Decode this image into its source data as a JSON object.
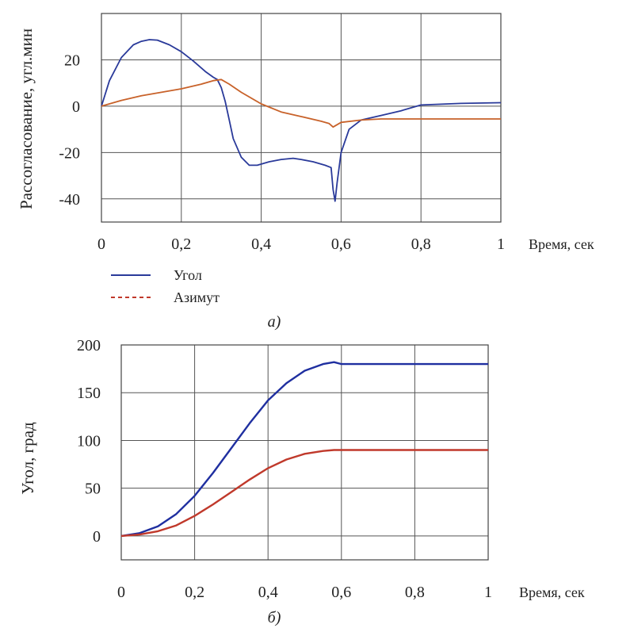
{
  "chart_data": [
    {
      "type": "line",
      "panel_caption": "а)",
      "ylabel": "Рассогласование, угл.мин",
      "xlabel": "Время, сек",
      "xlim": [
        0,
        1
      ],
      "ylim": [
        -50,
        40
      ],
      "x_ticks": [
        0,
        0.2,
        0.4,
        0.6,
        0.8,
        1
      ],
      "x_tick_labels": [
        "0",
        "0,2",
        "0,4",
        "0,6",
        "0,8",
        "1"
      ],
      "y_ticks": [
        -40,
        -20,
        0,
        20
      ],
      "y_tick_labels": [
        "-40",
        "-20",
        "0",
        "20"
      ],
      "y_grid": [
        -50,
        -40,
        -20,
        0,
        20,
        40
      ],
      "grid": true,
      "legend_position": "bottom-left",
      "series": [
        {
          "name": "Угол",
          "color": "#2a3a9a",
          "style": "solid",
          "x": [
            0,
            0.02,
            0.05,
            0.08,
            0.1,
            0.12,
            0.14,
            0.17,
            0.2,
            0.23,
            0.26,
            0.28,
            0.29,
            0.3,
            0.31,
            0.32,
            0.33,
            0.35,
            0.37,
            0.39,
            0.42,
            0.45,
            0.48,
            0.5,
            0.53,
            0.56,
            0.575,
            0.58,
            0.585,
            0.59,
            0.6,
            0.62,
            0.65,
            0.7,
            0.75,
            0.8,
            0.9,
            1
          ],
          "y": [
            0,
            11,
            21,
            26.5,
            28,
            28.7,
            28.5,
            26.5,
            23.5,
            19.5,
            15,
            12.5,
            11.5,
            8,
            2,
            -6,
            -14,
            -22,
            -25.5,
            -25.5,
            -24,
            -23,
            -22.5,
            -23,
            -24,
            -25.5,
            -26.5,
            -36,
            -41,
            -33,
            -20,
            -10,
            -6,
            -4,
            -2,
            0.5,
            1.2,
            1.5
          ]
        },
        {
          "name": "Азимут",
          "color": "#c8622a",
          "style": "dashed",
          "x": [
            0,
            0.05,
            0.1,
            0.15,
            0.2,
            0.25,
            0.28,
            0.3,
            0.32,
            0.35,
            0.4,
            0.45,
            0.5,
            0.55,
            0.57,
            0.58,
            0.6,
            0.65,
            0.7,
            0.8,
            0.9,
            1
          ],
          "y": [
            0,
            2.5,
            4.5,
            6,
            7.5,
            9.5,
            11,
            11.5,
            9.5,
            6,
            1,
            -2.5,
            -4.5,
            -6.5,
            -7.5,
            -9,
            -7,
            -6,
            -5.5,
            -5.5,
            -5.5,
            -5.5
          ]
        }
      ]
    },
    {
      "type": "line",
      "panel_caption": "б)",
      "ylabel": "Угол, град",
      "xlabel": "Время, сек",
      "xlim": [
        0,
        1
      ],
      "ylim": [
        -25,
        200
      ],
      "x_ticks": [
        0,
        0.2,
        0.4,
        0.6,
        0.8,
        1
      ],
      "x_tick_labels": [
        "0",
        "0,2",
        "0,4",
        "0,6",
        "0,8",
        "1"
      ],
      "y_ticks": [
        0,
        50,
        100,
        150,
        200
      ],
      "y_tick_labels": [
        "0",
        "50",
        "100",
        "150",
        "200"
      ],
      "y_grid": [
        0,
        50,
        100,
        150,
        200
      ],
      "grid": true,
      "series": [
        {
          "color": "#1f2fa0",
          "style": "solid",
          "x": [
            0,
            0.05,
            0.1,
            0.15,
            0.2,
            0.25,
            0.3,
            0.35,
            0.4,
            0.45,
            0.5,
            0.55,
            0.58,
            0.6,
            0.7,
            0.8,
            0.9,
            1
          ],
          "y": [
            0,
            3,
            10,
            23,
            42,
            66,
            92,
            118,
            142,
            160,
            173,
            180,
            182,
            180,
            180,
            180,
            180,
            180
          ]
        },
        {
          "color": "#c0392b",
          "style": "solid",
          "x": [
            0,
            0.05,
            0.1,
            0.15,
            0.2,
            0.25,
            0.3,
            0.35,
            0.4,
            0.45,
            0.5,
            0.55,
            0.58,
            0.6,
            0.7,
            0.8,
            0.9,
            1
          ],
          "y": [
            0,
            1.5,
            5,
            11,
            21,
            33,
            46,
            59,
            71,
            80,
            86,
            89,
            90,
            90,
            90,
            90,
            90,
            90
          ]
        }
      ]
    }
  ]
}
